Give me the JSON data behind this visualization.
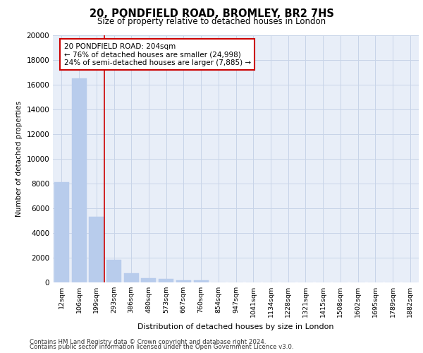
{
  "title1": "20, PONDFIELD ROAD, BROMLEY, BR2 7HS",
  "title2": "Size of property relative to detached houses in London",
  "xlabel": "Distribution of detached houses by size in London",
  "ylabel": "Number of detached properties",
  "categories": [
    "12sqm",
    "106sqm",
    "199sqm",
    "293sqm",
    "386sqm",
    "480sqm",
    "573sqm",
    "667sqm",
    "760sqm",
    "854sqm",
    "947sqm",
    "1041sqm",
    "1134sqm",
    "1228sqm",
    "1321sqm",
    "1415sqm",
    "1508sqm",
    "1602sqm",
    "1695sqm",
    "1789sqm",
    "1882sqm"
  ],
  "values": [
    8100,
    16500,
    5300,
    1850,
    750,
    340,
    260,
    200,
    200,
    0,
    0,
    0,
    0,
    0,
    0,
    0,
    0,
    0,
    0,
    0,
    0
  ],
  "bar_color": "#b8ccec",
  "bar_edge_color": "#b8ccec",
  "grid_color": "#c8d4e8",
  "background_color": "#e8eef8",
  "vline_x_idx": 2,
  "vline_color": "#cc0000",
  "annotation_line1": "20 PONDFIELD ROAD: 204sqm",
  "annotation_line2": "← 76% of detached houses are smaller (24,998)",
  "annotation_line3": "24% of semi-detached houses are larger (7,885) →",
  "annotation_box_color": "#ffffff",
  "annotation_box_edge": "#cc0000",
  "ylim": [
    0,
    20000
  ],
  "yticks": [
    0,
    2000,
    4000,
    6000,
    8000,
    10000,
    12000,
    14000,
    16000,
    18000,
    20000
  ],
  "footer1": "Contains HM Land Registry data © Crown copyright and database right 2024.",
  "footer2": "Contains public sector information licensed under the Open Government Licence v3.0."
}
